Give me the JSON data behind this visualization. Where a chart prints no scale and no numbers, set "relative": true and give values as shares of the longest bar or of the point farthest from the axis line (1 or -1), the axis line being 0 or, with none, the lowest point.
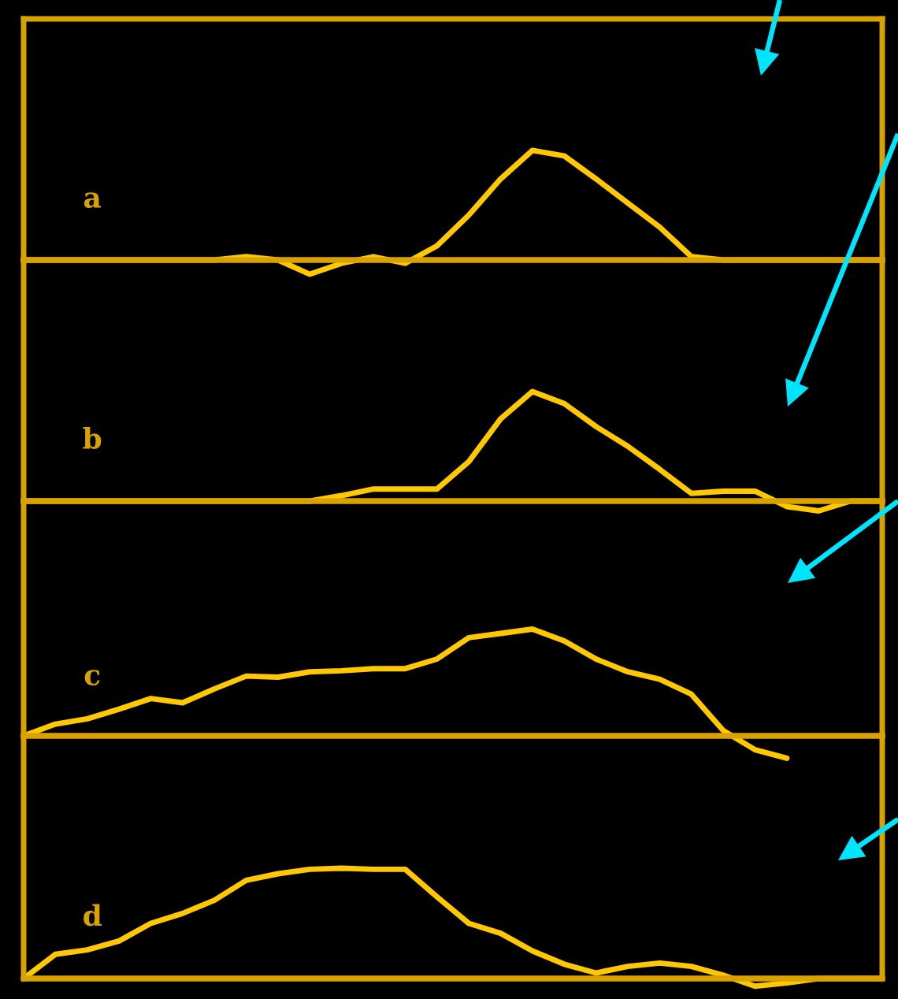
{
  "chart_data": [
    {
      "type": "line",
      "relative": true,
      "categories": [
        null,
        null,
        null,
        null,
        null,
        null,
        null,
        null,
        null,
        null,
        null,
        null,
        null,
        null,
        null,
        null,
        null,
        null,
        null,
        null,
        null,
        null,
        null,
        null,
        null,
        null,
        null,
        null
      ],
      "annotations": [
        "a"
      ],
      "series": [
        {
          "color": "#ffc800",
          "values": [
            0,
            0,
            0,
            0,
            0,
            0,
            0,
            0.03,
            0,
            -0.13,
            -0.03,
            0.03,
            -0.03,
            0.13,
            0.41,
            0.74,
            1,
            0.95,
            0.74,
            0.52,
            0.3,
            0.03,
            0,
            0,
            0,
            0,
            0,
            0
          ]
        }
      ]
    },
    {
      "type": "line",
      "relative": true,
      "categories": [
        null,
        null,
        null,
        null,
        null,
        null,
        null,
        null,
        null,
        null,
        null,
        null,
        null,
        null,
        null,
        null,
        null,
        null,
        null,
        null,
        null,
        null,
        null,
        null,
        null,
        null,
        null,
        null
      ],
      "annotations": [
        "b"
      ],
      "series": [
        {
          "color": "#ffc800",
          "values": [
            0,
            0,
            0,
            0,
            0,
            0,
            0,
            0,
            0,
            0,
            0.05,
            0.11,
            0.11,
            0.11,
            0.36,
            0.75,
            1,
            0.89,
            0.68,
            0.5,
            0.29,
            0.07,
            0.09,
            0.09,
            -0.05,
            -0.09,
            0,
            0
          ]
        }
      ]
    },
    {
      "type": "line",
      "relative": true,
      "categories": [
        null,
        null,
        null,
        null,
        null,
        null,
        null,
        null,
        null,
        null,
        null,
        null,
        null,
        null,
        null,
        null,
        null,
        null,
        null,
        null,
        null,
        null,
        null,
        null,
        null,
        null,
        null,
        null
      ],
      "annotations": [
        "c"
      ],
      "series": [
        {
          "color": "#ffc800",
          "values": [
            0,
            0.11,
            0.16,
            0.25,
            0.35,
            0.31,
            0.44,
            0.56,
            0.55,
            0.6,
            0.61,
            0.63,
            0.63,
            0.72,
            0.92,
            0.96,
            1,
            0.89,
            0.72,
            0.6,
            0.53,
            0.39,
            0.05,
            -0.13,
            -0.21,
            null,
            null,
            null
          ]
        }
      ]
    },
    {
      "type": "line",
      "relative": true,
      "categories": [
        null,
        null,
        null,
        null,
        null,
        null,
        null,
        null,
        null,
        null,
        null,
        null,
        null,
        null,
        null,
        null,
        null,
        null,
        null,
        null,
        null,
        null,
        null,
        null,
        null,
        null,
        null,
        null
      ],
      "annotations": [
        "d"
      ],
      "ref_lines": [
        {
          "axis": "y",
          "value": 0,
          "color": "#d8a200"
        }
      ],
      "series": [
        {
          "color": "#ffc800",
          "values": [
            0,
            0.22,
            0.26,
            0.34,
            0.5,
            0.59,
            0.71,
            0.89,
            0.95,
            0.99,
            1,
            0.99,
            0.99,
            0.74,
            0.5,
            0.41,
            0.25,
            0.13,
            0.05,
            0.11,
            0.14,
            0.11,
            0.03,
            -0.07,
            -0.04,
            0,
            0,
            0
          ]
        }
      ]
    }
  ]
}
